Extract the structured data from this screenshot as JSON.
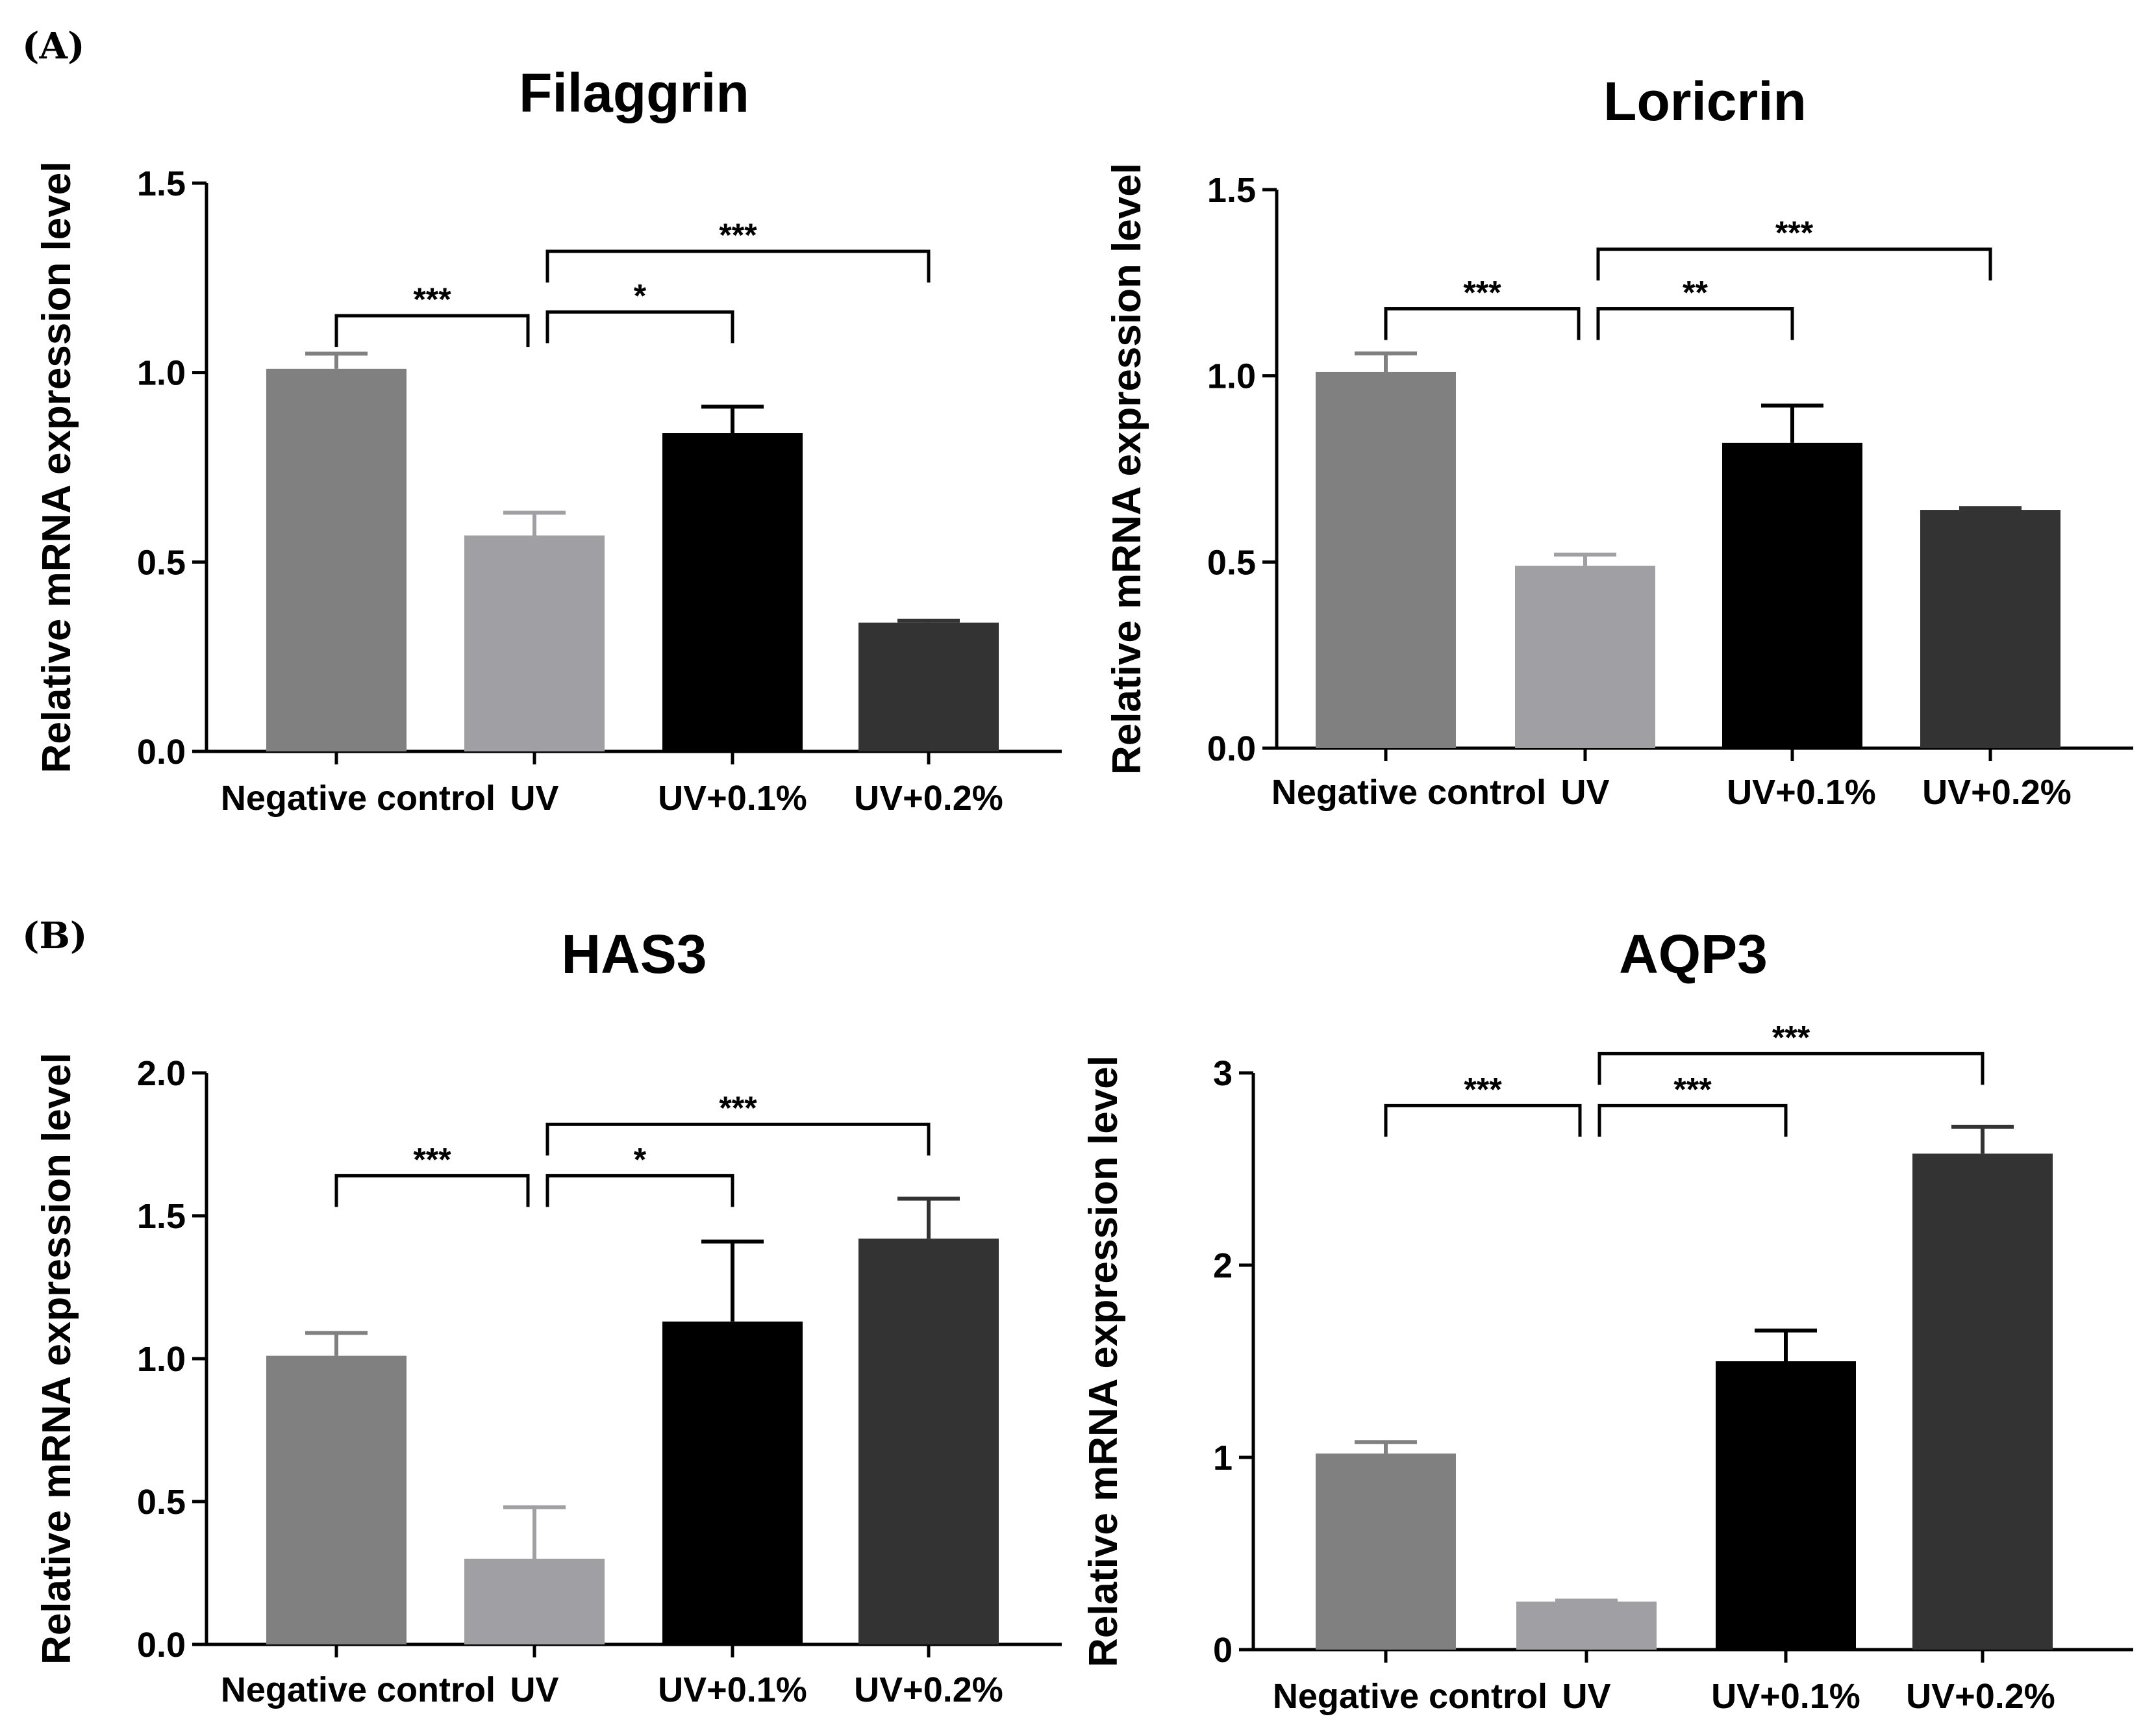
{
  "panel_labels": [
    "(A)",
    "(B)"
  ],
  "colors": {
    "negative_control": "#808080",
    "uv": "#a0a0a4",
    "uv_0_1": "#000000",
    "uv_0_2": "#333333",
    "axis": "#000000"
  },
  "chart_data": [
    {
      "type": "bar",
      "title": "Filaggrin",
      "ylabel": "Relative mRNA expression level",
      "categories": [
        "Negative control",
        "UV",
        "UV+0.1%",
        "UV+0.2%"
      ],
      "values": [
        1.01,
        0.57,
        0.84,
        0.34
      ],
      "errors": [
        0.04,
        0.06,
        0.07,
        0.005
      ],
      "ylim": [
        0,
        1.5
      ],
      "yticks": [
        "0.0",
        "0.5",
        "1.0",
        "1.5"
      ],
      "significance": [
        {
          "from": 0,
          "to": 1,
          "label": "***",
          "y": 1.15
        },
        {
          "from": 1,
          "to": 2,
          "label": "*",
          "y": 1.16
        },
        {
          "from": 1,
          "to": 3,
          "label": "***",
          "y": 1.32
        }
      ]
    },
    {
      "type": "bar",
      "title": "Loricrin",
      "ylabel": "Relative mRNA expression level",
      "categories": [
        "Negative control",
        "UV",
        "UV+0.1%",
        "UV+0.2%"
      ],
      "values": [
        1.01,
        0.49,
        0.82,
        0.64
      ],
      "errors": [
        0.05,
        0.03,
        0.1,
        0.005
      ],
      "ylim": [
        0,
        1.5
      ],
      "yticks": [
        "0.0",
        "0.5",
        "1.0",
        "1.5"
      ],
      "significance": [
        {
          "from": 0,
          "to": 1,
          "label": "***",
          "y": 1.18
        },
        {
          "from": 1,
          "to": 2,
          "label": "**",
          "y": 1.18
        },
        {
          "from": 1,
          "to": 3,
          "label": "***",
          "y": 1.34
        }
      ]
    },
    {
      "type": "bar",
      "title": "HAS3",
      "ylabel": "Relative mRNA expression level",
      "categories": [
        "Negative control",
        "UV",
        "UV+0.1%",
        "UV+0.2%"
      ],
      "values": [
        1.01,
        0.3,
        1.13,
        1.42
      ],
      "errors": [
        0.08,
        0.18,
        0.28,
        0.14
      ],
      "ylim": [
        0,
        2.0
      ],
      "yticks": [
        "0.0",
        "0.5",
        "1.0",
        "1.5",
        "2.0"
      ],
      "significance": [
        {
          "from": 0,
          "to": 1,
          "label": "***",
          "y": 1.64
        },
        {
          "from": 1,
          "to": 2,
          "label": "*",
          "y": 1.64
        },
        {
          "from": 1,
          "to": 3,
          "label": "***",
          "y": 1.82
        }
      ]
    },
    {
      "type": "bar",
      "title": "AQP3",
      "ylabel": "Relative mRNA expression level",
      "categories": [
        "Negative control",
        "UV",
        "UV+0.1%",
        "UV+0.2%"
      ],
      "values": [
        1.02,
        0.25,
        1.5,
        2.58
      ],
      "errors": [
        0.06,
        0.005,
        0.16,
        0.14
      ],
      "ylim": [
        0,
        3
      ],
      "yticks": [
        "0",
        "1",
        "2",
        "3"
      ],
      "significance": [
        {
          "from": 0,
          "to": 1,
          "label": "***",
          "y": 2.83
        },
        {
          "from": 1,
          "to": 2,
          "label": "***",
          "y": 2.83
        },
        {
          "from": 1,
          "to": 3,
          "label": "***",
          "y": 3.1
        }
      ]
    }
  ]
}
